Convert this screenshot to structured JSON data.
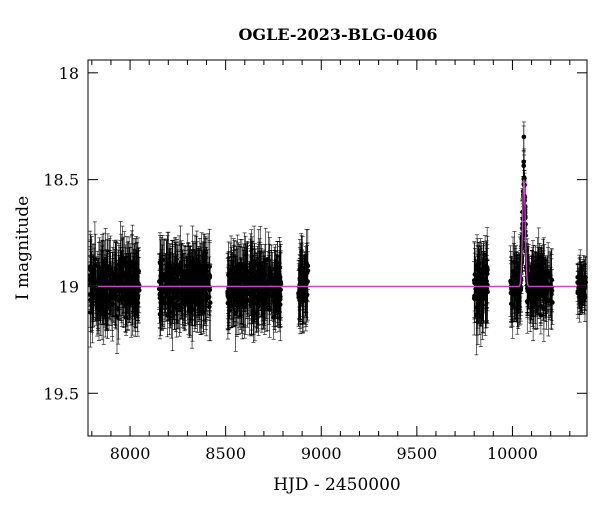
{
  "chart_data": {
    "type": "scatter",
    "title": "OGLE-2023-BLG-0406",
    "xlabel": "HJD - 2450000",
    "ylabel": "I magnitude",
    "xlim": [
      7780,
      10390
    ],
    "ylim": [
      19.7,
      17.94
    ],
    "y_inverted": true,
    "grid": false,
    "x_major_ticks": [
      8000,
      8500,
      9000,
      9500,
      10000
    ],
    "x_tick_labels": [
      "8000",
      "8500",
      "9000",
      "9500",
      "10000"
    ],
    "y_major_ticks": [
      18,
      18.5,
      19,
      19.5
    ],
    "y_tick_labels": [
      "18",
      "18.5",
      "19",
      "19.5"
    ],
    "baseline_magnitude": 19.0,
    "observing_seasons": [
      {
        "x_range": [
          7790,
          8050
        ],
        "mag_mean": 19.0,
        "mag_scatter": 0.09,
        "errorbar": 0.13
      },
      {
        "x_range": [
          8150,
          8420
        ],
        "mag_mean": 19.0,
        "mag_scatter": 0.09,
        "errorbar": 0.13
      },
      {
        "x_range": [
          8510,
          8790
        ],
        "mag_mean": 19.0,
        "mag_scatter": 0.09,
        "errorbar": 0.13
      },
      {
        "x_range": [
          8880,
          8930
        ],
        "mag_mean": 19.0,
        "mag_scatter": 0.09,
        "errorbar": 0.13
      },
      {
        "x_range": [
          9800,
          9870
        ],
        "mag_mean": 19.0,
        "mag_scatter": 0.1,
        "errorbar": 0.14
      },
      {
        "x_range": [
          9990,
          10210
        ],
        "mag_mean": 19.0,
        "mag_scatter": 0.08,
        "errorbar": 0.12
      },
      {
        "x_range": [
          10340,
          10385
        ],
        "mag_mean": 18.92,
        "mag_scatter": 0.05,
        "errorbar": 0.09
      }
    ],
    "event": {
      "t0": 10060,
      "peak_magnitude": 18.5,
      "highest_point_magnitude": 18.3
    },
    "series": [
      {
        "color": "#000000",
        "marker": "filled-circle-with-errorbars"
      },
      {
        "color": "#cc44cc",
        "style": "line"
      }
    ]
  }
}
